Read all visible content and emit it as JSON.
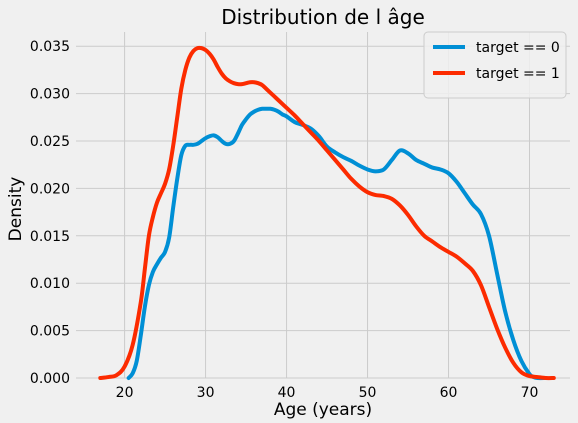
{
  "chart_data": {
    "type": "line",
    "title": "Distribution de  l âge",
    "xlabel": "Age (years)",
    "ylabel": "Density",
    "xlim": [
      14,
      75
    ],
    "ylim": [
      0,
      0.0365
    ],
    "xticks": [
      20,
      30,
      40,
      50,
      60,
      70
    ],
    "yticks": [
      0,
      0.005,
      0.01,
      0.015,
      0.02,
      0.025,
      0.03,
      0.035
    ],
    "ytick_labels": [
      "0.000",
      "0.005",
      "0.010",
      "0.015",
      "0.020",
      "0.025",
      "0.030",
      "0.035"
    ],
    "grid": true,
    "legend_position": "top-right",
    "series": [
      {
        "name": "target == 0",
        "color": "#008fd5",
        "x": [
          20.5,
          21.0,
          21.5,
          22.0,
          22.5,
          23.0,
          23.5,
          24.0,
          24.5,
          25.0,
          25.5,
          26.0,
          26.5,
          27.0,
          27.5,
          28.0,
          28.5,
          29.0,
          29.5,
          30.0,
          30.5,
          31.0,
          31.5,
          32.0,
          32.5,
          33.0,
          33.5,
          34.0,
          34.5,
          35.0,
          35.5,
          36.0,
          36.5,
          37.0,
          37.5,
          38.0,
          38.5,
          39.0,
          39.5,
          40.0,
          41.0,
          42.0,
          43.0,
          44.0,
          45.0,
          46.0,
          47.0,
          48.0,
          49.0,
          50.0,
          51.0,
          52.0,
          53.0,
          54.0,
          55.0,
          56.0,
          57.0,
          58.0,
          59.0,
          60.0,
          61.0,
          62.0,
          63.0,
          64.0,
          65.0,
          66.0,
          67.0,
          68.0,
          69.0,
          70.0,
          70.5,
          71.0,
          72.0
        ],
        "y": [
          0.0,
          0.0005,
          0.0018,
          0.0045,
          0.0075,
          0.0098,
          0.0112,
          0.012,
          0.0127,
          0.0133,
          0.0148,
          0.018,
          0.021,
          0.0235,
          0.0245,
          0.0246,
          0.0246,
          0.0247,
          0.025,
          0.0253,
          0.0255,
          0.0256,
          0.0254,
          0.025,
          0.0247,
          0.0247,
          0.025,
          0.0258,
          0.0267,
          0.0273,
          0.0278,
          0.0281,
          0.0283,
          0.0284,
          0.0284,
          0.0284,
          0.0283,
          0.0281,
          0.0278,
          0.0276,
          0.027,
          0.0267,
          0.0263,
          0.0255,
          0.0244,
          0.0238,
          0.0233,
          0.0229,
          0.0224,
          0.022,
          0.0218,
          0.022,
          0.023,
          0.024,
          0.0237,
          0.023,
          0.0226,
          0.0222,
          0.022,
          0.0216,
          0.0207,
          0.0195,
          0.0183,
          0.0173,
          0.015,
          0.011,
          0.007,
          0.004,
          0.0018,
          0.0004,
          0.0001,
          0.0,
          0.0
        ]
      },
      {
        "name": "target == 1",
        "color": "#fc2b00",
        "x": [
          17.0,
          18.0,
          19.0,
          20.0,
          21.0,
          22.0,
          22.5,
          23.0,
          23.5,
          24.0,
          24.5,
          25.0,
          25.5,
          26.0,
          26.5,
          27.0,
          27.5,
          28.0,
          28.5,
          29.0,
          29.5,
          30.0,
          30.5,
          31.0,
          31.5,
          32.0,
          32.5,
          33.0,
          33.5,
          34.0,
          34.5,
          35.0,
          35.5,
          36.0,
          36.5,
          37.0,
          37.5,
          38.0,
          38.5,
          39.0,
          39.5,
          40.0,
          41.0,
          42.0,
          43.0,
          44.0,
          45.0,
          46.0,
          47.0,
          48.0,
          49.0,
          50.0,
          51.0,
          52.0,
          53.0,
          54.0,
          55.0,
          56.0,
          57.0,
          58.0,
          59.0,
          60.0,
          61.0,
          62.0,
          63.0,
          64.0,
          65.0,
          66.0,
          67.0,
          68.0,
          69.0,
          70.0,
          71.0,
          72.0,
          73.0
        ],
        "y": [
          0.0,
          0.0001,
          0.0003,
          0.0012,
          0.0035,
          0.008,
          0.0115,
          0.015,
          0.017,
          0.0185,
          0.0195,
          0.0205,
          0.022,
          0.0245,
          0.0275,
          0.0305,
          0.0325,
          0.0338,
          0.0345,
          0.0348,
          0.0348,
          0.0346,
          0.0342,
          0.0336,
          0.0328,
          0.0321,
          0.0316,
          0.0313,
          0.0311,
          0.031,
          0.031,
          0.0311,
          0.0312,
          0.0312,
          0.0311,
          0.0309,
          0.0305,
          0.0301,
          0.0297,
          0.0293,
          0.0289,
          0.0285,
          0.0277,
          0.0268,
          0.0259,
          0.025,
          0.024,
          0.023,
          0.022,
          0.021,
          0.0202,
          0.0196,
          0.0193,
          0.0192,
          0.0189,
          0.0182,
          0.0172,
          0.016,
          0.015,
          0.0144,
          0.0138,
          0.0133,
          0.0128,
          0.0121,
          0.0113,
          0.0098,
          0.0075,
          0.0052,
          0.0032,
          0.0016,
          0.0006,
          0.0002,
          0.0001,
          0.0,
          0.0
        ]
      }
    ]
  }
}
